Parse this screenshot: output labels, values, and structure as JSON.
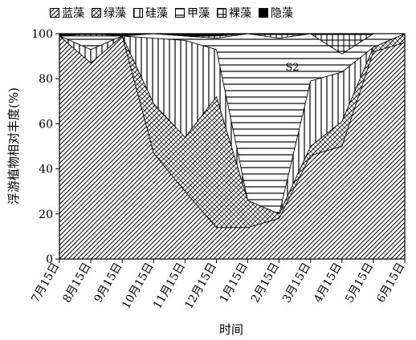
{
  "chart_data": {
    "type": "area",
    "stacked": true,
    "x": [
      "7月15日",
      "8月15日",
      "9月15日",
      "10月15日",
      "11月15日",
      "12月15日",
      "1月15日",
      "2月15日",
      "3月15日",
      "4月15日",
      "5月15日",
      "6月15日"
    ],
    "xlabel": "时间",
    "ylabel": "浮游植物相对丰度(%)",
    "ylim": [
      0,
      100
    ],
    "yticks": [
      0,
      20,
      40,
      60,
      80,
      100
    ],
    "legend_position": "top",
    "annotation": "S2",
    "series": [
      {
        "name": "蓝藻",
        "pattern": "diagonal-dense",
        "values": [
          99,
          87,
          99,
          47,
          30,
          14,
          14,
          18,
          46,
          50,
          92,
          96
        ]
      },
      {
        "name": "绿藻",
        "pattern": "crosshatch",
        "values": [
          0,
          0,
          0,
          22,
          24,
          58,
          12,
          2,
          4,
          11,
          2,
          4
        ]
      },
      {
        "name": "硅藻",
        "pattern": "vertical",
        "values": [
          0,
          6,
          0,
          29,
          43,
          21,
          0,
          0,
          29,
          22,
          0,
          0
        ]
      },
      {
        "name": "甲藻",
        "pattern": "horizontal",
        "values": [
          0,
          6,
          0,
          2,
          2,
          5,
          74,
          78,
          21,
          8,
          6,
          0
        ]
      },
      {
        "name": "裸藻",
        "pattern": "grid",
        "values": [
          0,
          1,
          0,
          0,
          0,
          1,
          0,
          2,
          0,
          9,
          0,
          0
        ]
      },
      {
        "name": "隐藻",
        "pattern": "solid",
        "values": [
          1,
          0,
          1,
          0,
          1,
          1,
          0,
          0,
          0,
          0,
          0,
          0
        ]
      }
    ]
  }
}
